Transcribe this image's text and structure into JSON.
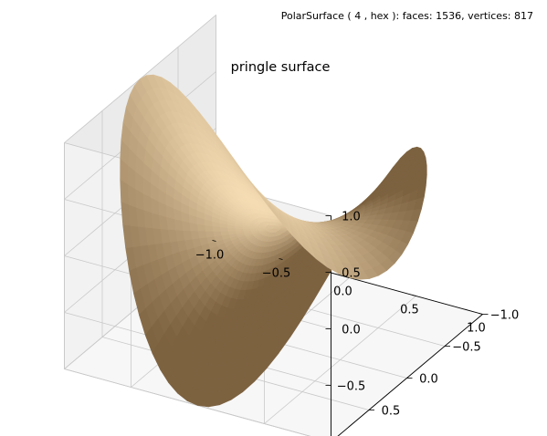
{
  "figure": {
    "suptitle": "PolarSurface ( 4 , hex ):  faces: 1536,  vertices: 817"
  },
  "chart_data": {
    "type": "surface3d",
    "title": "pringle surface",
    "surface": "z = x^2 - y^2 over the unit disk (polar grid)",
    "faces": 1536,
    "vertices": 817,
    "x_ticks": [
      "−1.0",
      "−0.5",
      "0.0",
      "0.5",
      "1.0"
    ],
    "y_ticks": [
      "−1.0",
      "−0.5",
      "0.0",
      "0.5",
      "1.0"
    ],
    "z_ticks": [
      "−1.0",
      "−0.5",
      "0.0",
      "0.5",
      "1.0"
    ],
    "xlim": [
      -1,
      1
    ],
    "ylim": [
      -1,
      1
    ],
    "zlim": [
      -1,
      1
    ],
    "grid": true,
    "colors": {
      "surface_light": "#f5dcb3",
      "surface_dark": "#7d6240",
      "pane_left": "#ebebeb",
      "pane_right": "#f2f2f2",
      "pane_floor": "#f7f7f7",
      "grid": "#c8c8c8"
    }
  }
}
